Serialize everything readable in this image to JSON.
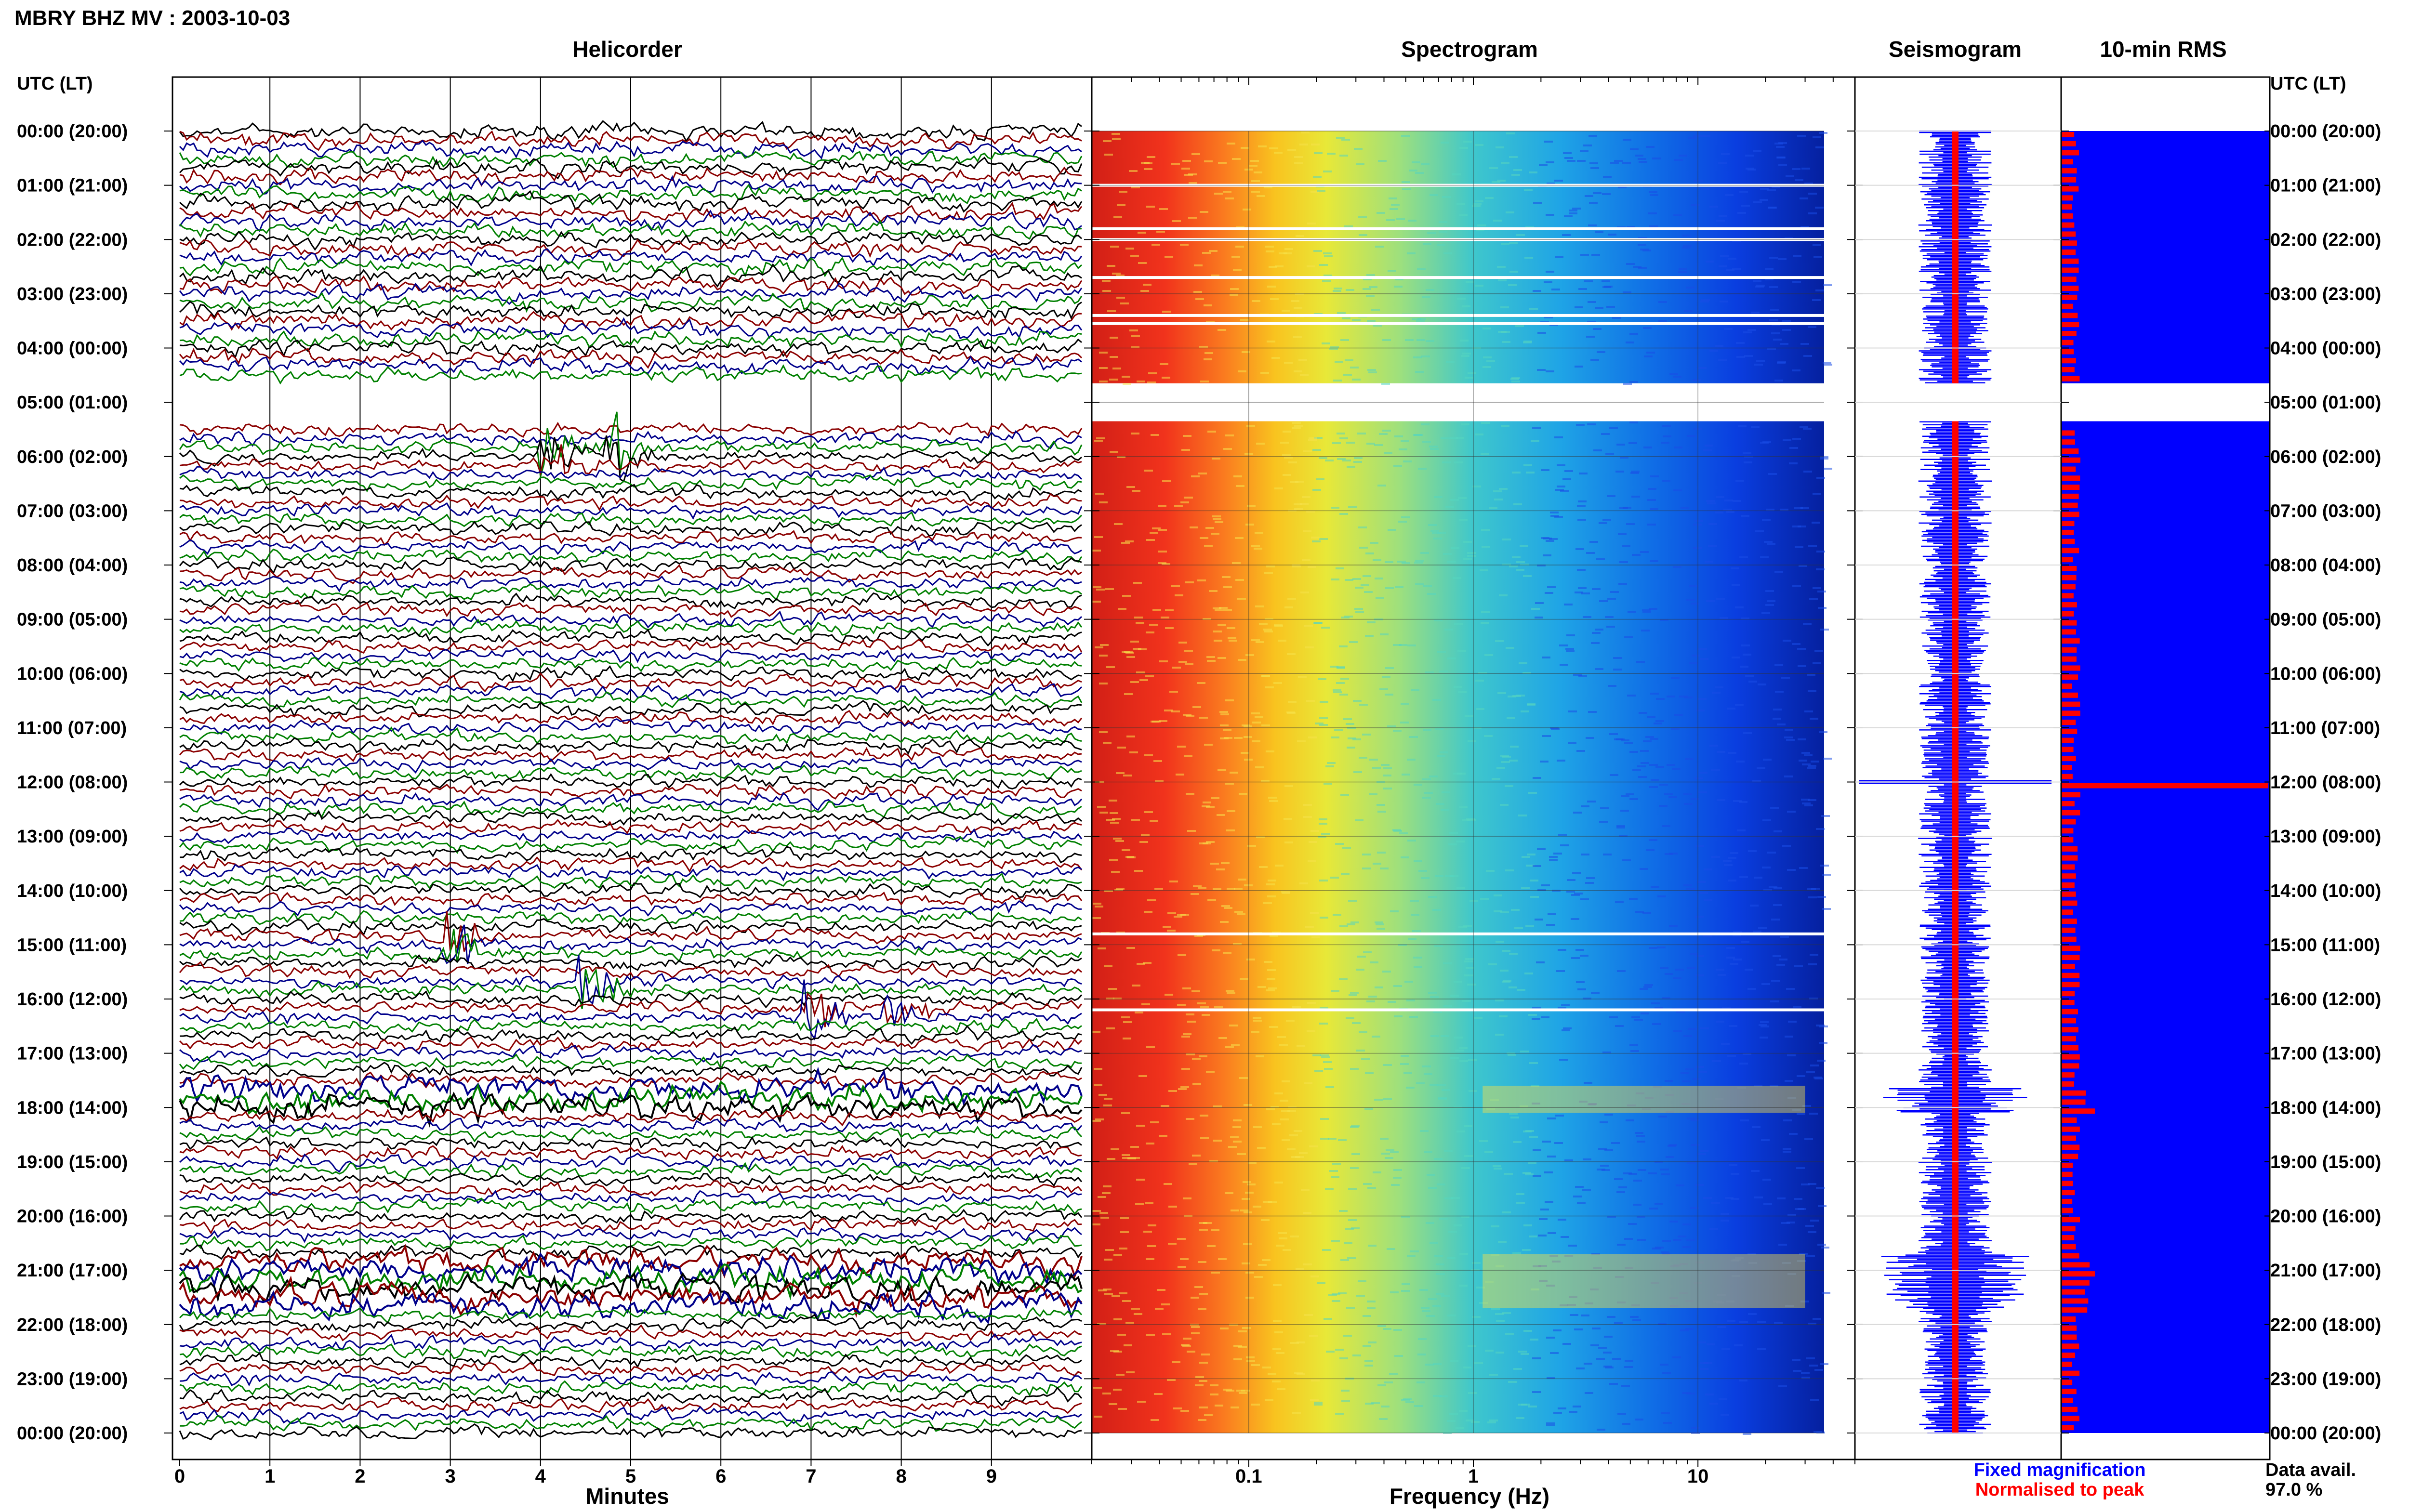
{
  "header": {
    "title": "MBRY BHZ MV : 2003-10-03",
    "utc_label_left": "UTC (LT)",
    "utc_label_right": "UTC (LT)"
  },
  "panels": {
    "helicorder": "Helicorder",
    "spectrogram": "Spectrogram",
    "seismogram": "Seismogram",
    "rms": "10-min RMS"
  },
  "legend": {
    "fixed": "Fixed magnification",
    "normalised": "Normalised to peak",
    "data_avail_label": "Data avail.",
    "data_avail_value": "97.0 %"
  },
  "colors": {
    "trace_cycle": [
      "#000000",
      "#8b0000",
      "#00008b",
      "#008000"
    ],
    "seismogram_fixed": "#0000ff",
    "seismogram_norm": "#ff0000",
    "rms_bg": "#0000ff",
    "rms_bar": "#ff0000"
  },
  "chart_data": [
    {
      "type": "line",
      "name": "helicorder",
      "xlabel": "Minutes",
      "ylabel": "UTC (LT)",
      "xlim": [
        0,
        10
      ],
      "x_ticks": [
        "0",
        "1",
        "2",
        "3",
        "4",
        "5",
        "6",
        "7",
        "8",
        "9"
      ],
      "y_hours_utc": [
        "00:00 (20:00)",
        "01:00 (21:00)",
        "02:00 (22:00)",
        "03:00 (23:00)",
        "04:00 (00:00)",
        "05:00 (01:00)",
        "06:00 (02:00)",
        "07:00 (03:00)",
        "08:00 (04:00)",
        "09:00 (05:00)",
        "10:00 (06:00)",
        "11:00 (07:00)",
        "12:00 (08:00)",
        "13:00 (09:00)",
        "14:00 (10:00)",
        "15:00 (11:00)",
        "16:00 (12:00)",
        "17:00 (13:00)",
        "18:00 (14:00)",
        "19:00 (15:00)",
        "20:00 (16:00)",
        "21:00 (17:00)",
        "22:00 (18:00)",
        "23:00 (19:00)",
        "00:00 (20:00)"
      ],
      "lines_per_hour": 6,
      "data_gap_hours": [
        4.65,
        5.35
      ],
      "high_activity_hours": [
        [
          17.6,
          18.1
        ],
        [
          20.7,
          21.7
        ]
      ],
      "events": [
        {
          "hour": 15.0,
          "minute": 3.0
        },
        {
          "hour": 15.7,
          "minute": 4.5
        },
        {
          "hour": 16.2,
          "minute": 7.0
        },
        {
          "hour": 16.2,
          "minute": 7.9
        },
        {
          "hour": 5.85,
          "minute": 4.8
        },
        {
          "hour": 6.0,
          "minute": 4.1
        }
      ]
    },
    {
      "type": "heatmap",
      "name": "spectrogram",
      "xlabel": "Frequency (Hz)",
      "xscale": "log",
      "xlim": [
        0.02,
        50
      ],
      "x_ticks": [
        "0.1",
        "1",
        "10"
      ],
      "data_gap_hours": [
        4.65,
        5.35
      ],
      "white_gap_hours": [
        1.0,
        1.8,
        2.0,
        2.7,
        3.4,
        3.55,
        14.8,
        16.2
      ]
    },
    {
      "type": "line",
      "name": "seismogram",
      "gap_hours": [
        4.65,
        5.35
      ],
      "spike_hours": [
        12.0
      ]
    },
    {
      "type": "bar",
      "name": "10-min RMS",
      "gap_hours": [
        4.65,
        5.35
      ],
      "peak_hours": [
        5.35,
        12.0,
        18.0,
        21.0
      ]
    }
  ]
}
